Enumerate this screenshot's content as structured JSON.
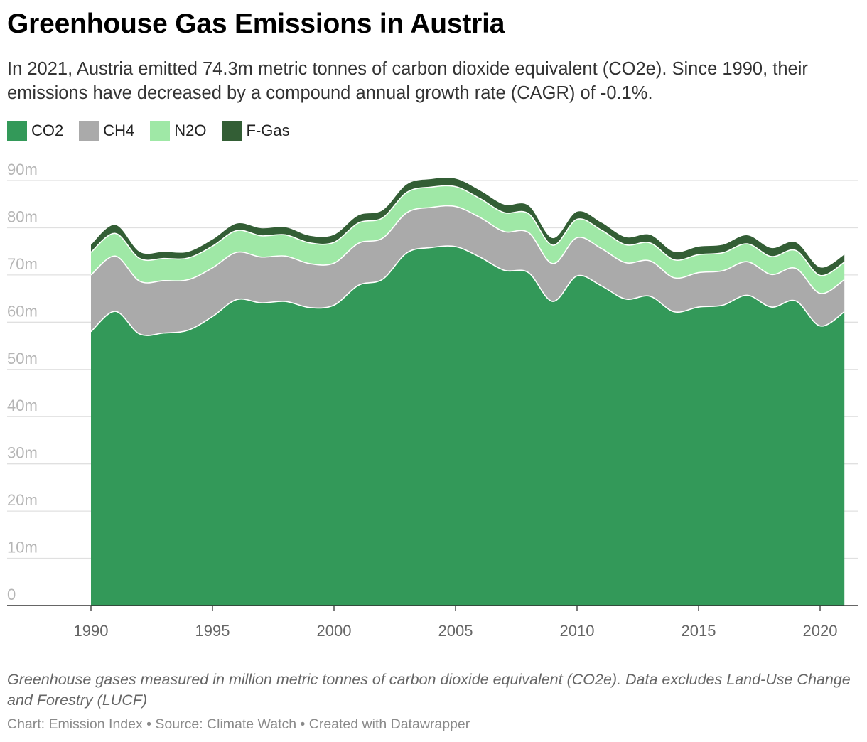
{
  "header": {
    "title": "Greenhouse Gas Emissions in Austria",
    "subtitle": "In 2021, Austria emitted 74.3m metric tonnes of carbon dioxide equivalent (CO2e). Since 1990, their emissions have decreased by a compound annual growth rate (CAGR) of -0.1%."
  },
  "legend": [
    {
      "label": "CO2",
      "color": "#339959"
    },
    {
      "label": "CH4",
      "color": "#aaaaaa"
    },
    {
      "label": "N2O",
      "color": "#9fe8a6"
    },
    {
      "label": "F-Gas",
      "color": "#335e35"
    }
  ],
  "chart_data": {
    "type": "area",
    "stacked": true,
    "title": "Greenhouse Gas Emissions in Austria",
    "ylabel": "",
    "xlabel": "",
    "ylim": [
      0,
      90
    ],
    "y_ticks": [
      0,
      10,
      20,
      30,
      40,
      50,
      60,
      70,
      80,
      90
    ],
    "y_tick_labels": [
      "0",
      "10m",
      "20m",
      "30m",
      "40m",
      "50m",
      "60m",
      "70m",
      "80m",
      "90m"
    ],
    "x_range": [
      1987,
      2022.5
    ],
    "x_ticks": [
      1990,
      1995,
      2000,
      2005,
      2010,
      2015,
      2020
    ],
    "x_tick_labels": [
      "1990",
      "1995",
      "2000",
      "2005",
      "2010",
      "2015",
      "2020"
    ],
    "grid": true,
    "legend_position": "top-left",
    "x": [
      1990,
      1991,
      1992,
      1993,
      1994,
      1995,
      1996,
      1997,
      1998,
      1999,
      2000,
      2001,
      2002,
      2003,
      2004,
      2005,
      2006,
      2007,
      2008,
      2009,
      2010,
      2011,
      2012,
      2013,
      2014,
      2015,
      2016,
      2017,
      2018,
      2019,
      2020,
      2021
    ],
    "series": [
      {
        "name": "CO2",
        "color": "#339959",
        "values": [
          58.0,
          62.3,
          57.5,
          57.7,
          58.3,
          61.2,
          64.8,
          64.1,
          64.4,
          63.1,
          63.6,
          67.8,
          69.1,
          74.7,
          75.8,
          76.0,
          73.8,
          71.0,
          70.5,
          64.4,
          69.8,
          67.7,
          64.9,
          65.5,
          62.2,
          63.2,
          63.6,
          65.7,
          63.2,
          64.5,
          59.2,
          62.2
        ]
      },
      {
        "name": "CH4",
        "color": "#aaaaaa",
        "values": [
          12.0,
          11.7,
          11.2,
          11.1,
          10.7,
          10.3,
          10.0,
          9.7,
          9.6,
          9.3,
          8.9,
          8.9,
          8.7,
          8.5,
          8.5,
          8.5,
          8.4,
          8.2,
          8.5,
          8.0,
          8.1,
          7.9,
          7.7,
          7.5,
          7.2,
          7.3,
          7.3,
          7.1,
          6.9,
          6.9,
          6.9,
          6.8
        ]
      },
      {
        "name": "N2O",
        "color": "#9fe8a6",
        "values": [
          4.8,
          4.8,
          4.8,
          4.7,
          4.6,
          4.6,
          4.6,
          4.5,
          4.5,
          4.4,
          4.4,
          4.3,
          4.3,
          4.3,
          4.3,
          4.2,
          4.0,
          4.0,
          4.0,
          3.9,
          3.9,
          3.9,
          3.8,
          3.8,
          3.8,
          3.8,
          3.8,
          3.8,
          3.8,
          3.8,
          3.8,
          3.7
        ]
      },
      {
        "name": "F-Gas",
        "color": "#335e35",
        "values": [
          1.6,
          1.8,
          1.4,
          1.4,
          1.3,
          1.4,
          1.5,
          1.6,
          1.6,
          1.5,
          1.6,
          1.6,
          1.6,
          1.7,
          1.7,
          1.7,
          1.7,
          1.7,
          1.7,
          1.5,
          1.6,
          1.6,
          1.6,
          1.7,
          1.7,
          1.7,
          1.7,
          1.8,
          1.8,
          1.7,
          1.7,
          1.6
        ]
      }
    ]
  },
  "footer": {
    "notes": "Greenhouse gases measured in million metric tonnes of carbon dioxide equivalent (CO2e). Data excludes Land-Use Change and Forestry (LUCF)",
    "source": "Chart: Emission Index • Source: Climate Watch • Created with Datawrapper"
  }
}
